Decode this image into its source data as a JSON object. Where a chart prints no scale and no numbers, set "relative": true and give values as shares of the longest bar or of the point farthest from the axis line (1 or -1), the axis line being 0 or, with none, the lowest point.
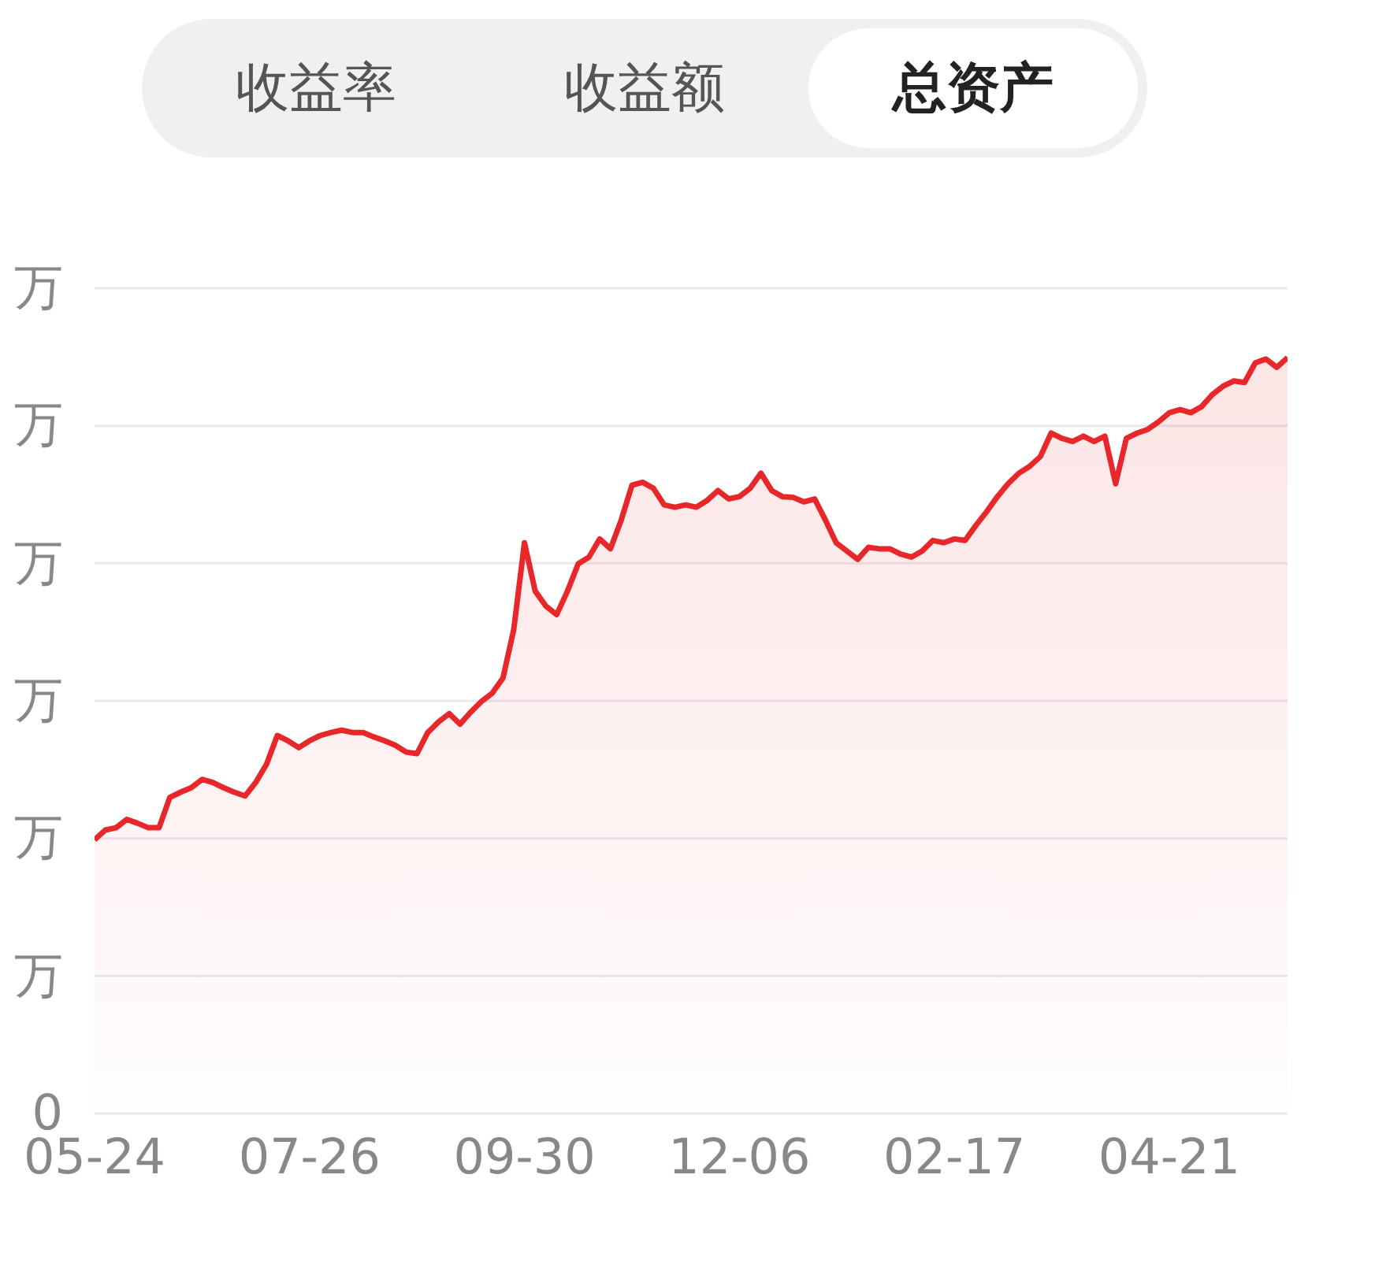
{
  "chart_data": {
    "type": "area",
    "relative": true,
    "annotations": [
      "收益率",
      "收益额",
      "总资产",
      "万",
      "万",
      "万",
      "万",
      "万",
      "万",
      "0"
    ],
    "categories": [
      "05-24",
      null,
      null,
      null,
      null,
      null,
      null,
      null,
      null,
      null,
      null,
      null,
      null,
      null,
      null,
      null,
      null,
      null,
      null,
      null,
      "07-26",
      null,
      null,
      null,
      null,
      null,
      null,
      null,
      null,
      null,
      null,
      null,
      null,
      null,
      null,
      null,
      null,
      null,
      null,
      null,
      "09-30",
      null,
      null,
      null,
      null,
      null,
      null,
      null,
      null,
      null,
      null,
      null,
      null,
      null,
      null,
      null,
      null,
      null,
      null,
      null,
      "12-06",
      null,
      null,
      null,
      null,
      null,
      null,
      null,
      null,
      null,
      null,
      null,
      null,
      null,
      null,
      null,
      null,
      null,
      null,
      null,
      "02-17",
      null,
      null,
      null,
      null,
      null,
      null,
      null,
      null,
      null,
      null,
      null,
      null,
      null,
      null,
      null,
      null,
      null,
      null,
      null,
      "04-21",
      null,
      null,
      null,
      null,
      null,
      null,
      null,
      null,
      null,
      null,
      null
    ],
    "series": [
      {
        "color": "#e8272a",
        "values": [
          0.362,
          0.375,
          0.378,
          0.389,
          0.384,
          0.378,
          0.378,
          0.418,
          0.425,
          0.431,
          0.442,
          0.438,
          0.431,
          0.425,
          0.42,
          0.438,
          0.462,
          0.5,
          0.493,
          0.484,
          0.493,
          0.5,
          0.504,
          0.507,
          0.504,
          0.504,
          0.498,
          0.493,
          0.487,
          0.478,
          0.476,
          0.504,
          0.518,
          0.529,
          0.515,
          0.531,
          0.545,
          0.556,
          0.576,
          0.64,
          0.755,
          0.691,
          0.671,
          0.66,
          0.691,
          0.727,
          0.736,
          0.76,
          0.747,
          0.785,
          0.831,
          0.835,
          0.827,
          0.805,
          0.802,
          0.805,
          0.802,
          0.811,
          0.824,
          0.813,
          0.816,
          0.827,
          0.847,
          0.824,
          0.816,
          0.815,
          0.809,
          0.813,
          0.785,
          0.755,
          0.744,
          0.733,
          0.749,
          0.747,
          0.747,
          0.74,
          0.736,
          0.744,
          0.758,
          0.755,
          0.76,
          0.758,
          0.778,
          0.796,
          0.816,
          0.833,
          0.847,
          0.856,
          0.869,
          0.9,
          0.893,
          0.889,
          0.896,
          0.889,
          0.896,
          0.833,
          0.893,
          0.9,
          0.905,
          0.915,
          0.927,
          0.931,
          0.927,
          0.935,
          0.951,
          0.962,
          0.969,
          0.967,
          0.993,
          0.998,
          0.987,
          1
        ]
      }
    ],
    "grid": "y",
    "marker": "none"
  }
}
